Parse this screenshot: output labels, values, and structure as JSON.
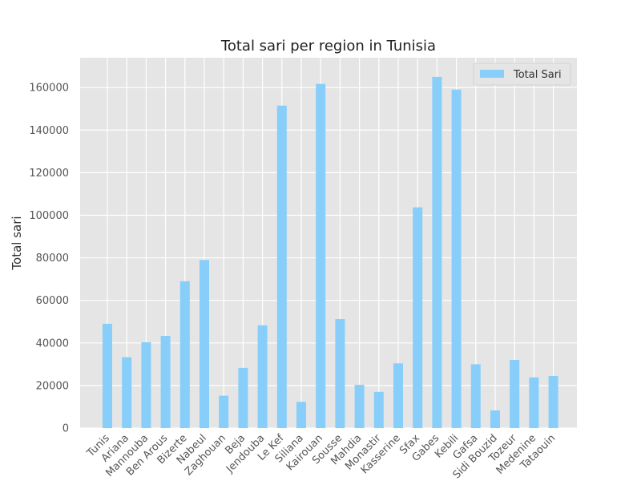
{
  "chart_data": {
    "type": "bar",
    "title": "Total sari per region in Tunisia",
    "xlabel": "",
    "ylabel": "Total sari",
    "ylim": [
      0,
      174000
    ],
    "yticks": [
      0,
      20000,
      40000,
      60000,
      80000,
      100000,
      120000,
      140000,
      160000
    ],
    "grid": true,
    "legend_position": "top-right",
    "categories": [
      "Tunis",
      "Ariana",
      "Mannouba",
      "Ben Arous",
      "Bizerte",
      "Nabeul",
      "Zaghouan",
      "Beja",
      "Jendouba",
      "Le Kef",
      "Siliana",
      "Kairouan",
      "Sousse",
      "Mahdia",
      "Monastir",
      "Kasserine",
      "Sfax",
      "Gabes",
      "Kebili",
      "Gafsa",
      "Sidi Bouzid",
      "Tozeur",
      "Medenine",
      "Tataouin"
    ],
    "series": [
      {
        "name": "Total Sari",
        "color": "#87cefa",
        "values": [
          49000,
          33300,
          40300,
          43300,
          69000,
          79000,
          15200,
          28300,
          48300,
          151500,
          12300,
          161700,
          51200,
          20300,
          17000,
          30400,
          103700,
          165000,
          159000,
          30000,
          8300,
          32000,
          23800,
          24500
        ]
      }
    ],
    "colors": {
      "plot_background": "#e5e5e5",
      "grid": "#ffffff"
    }
  }
}
